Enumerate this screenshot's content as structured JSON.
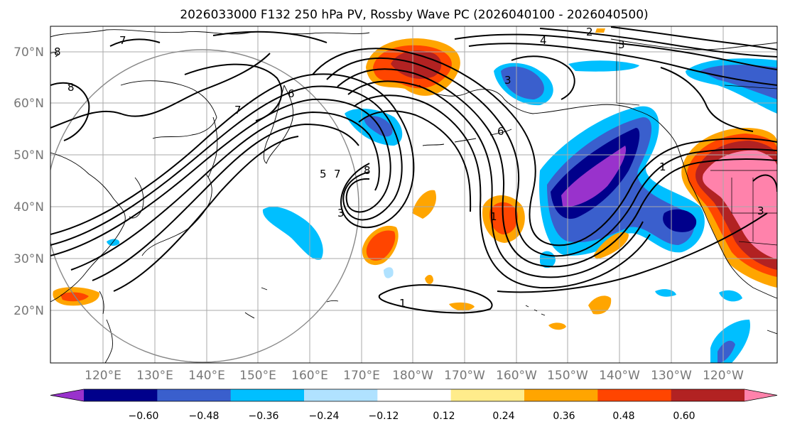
{
  "title": "2026033000 F132 250 hPa PV, Rossby Wave PC (2026040100 - 2026040500)",
  "lat_labels": [
    "70°N",
    "60°N",
    "50°N",
    "40°N",
    "30°N",
    "20°N"
  ],
  "lon_labels": [
    "120°E",
    "130°E",
    "140°E",
    "150°E",
    "160°E",
    "170°E",
    "180°W",
    "170°W",
    "160°W",
    "150°W",
    "140°W",
    "130°W",
    "120°W"
  ],
  "colorbar": {
    "colors": [
      "#9932cc",
      "#00008b",
      "#3a5fcd",
      "#00bfff",
      "#b0e2ff",
      "#ffffff",
      "#ffec8b",
      "#ffa500",
      "#ff4500",
      "#b22222",
      "#ff82ab"
    ],
    "tick_labels": [
      "−0.60",
      "−0.48",
      "−0.36",
      "−0.24",
      "−0.12",
      "0.12",
      "0.24",
      "0.36",
      "0.48",
      "0.60"
    ]
  },
  "contour_labels": [
    {
      "text": "8"
    },
    {
      "text": "8"
    },
    {
      "text": "7"
    },
    {
      "text": "7"
    },
    {
      "text": "6"
    },
    {
      "text": "4"
    },
    {
      "text": "3"
    },
    {
      "text": "2"
    },
    {
      "text": "8"
    },
    {
      "text": "7"
    },
    {
      "text": "5"
    },
    {
      "text": "3"
    },
    {
      "text": "6"
    },
    {
      "text": "1"
    },
    {
      "text": "1"
    },
    {
      "text": "3"
    },
    {
      "text": "1"
    },
    {
      "text": "3"
    }
  ]
}
